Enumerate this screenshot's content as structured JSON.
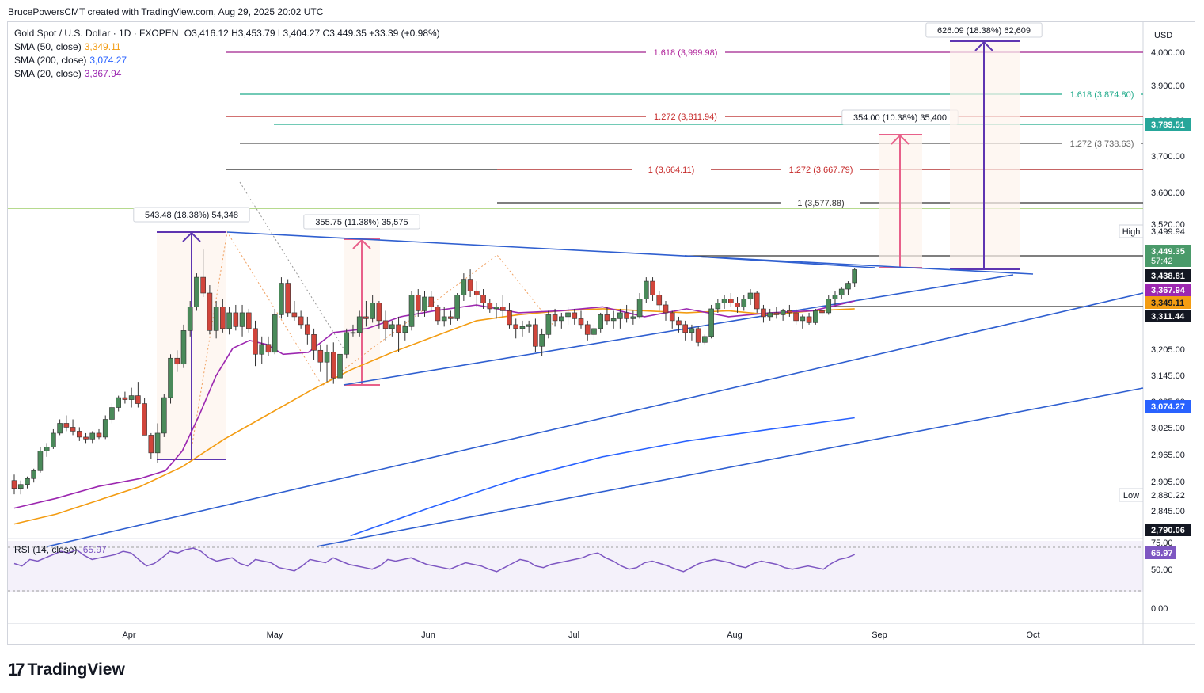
{
  "header": {
    "text": "BrucePowersCMT created with TradingView.com, Aug 29, 2025 20:02 UTC"
  },
  "legend": {
    "title": "Gold Spot / U.S. Dollar · 1D · FXOPEN",
    "ohlc": "O3,416.12  H3,453.79  L3,404.27  C3,449.35  +33.39 (+0.98%)",
    "sma50_label": "SMA (50, close)",
    "sma50_value": "3,349.11",
    "sma200_label": "SMA (200, close)",
    "sma200_value": "3,074.27",
    "sma20_label": "SMA (20, close)",
    "sma20_value": "3,367.94"
  },
  "rsi": {
    "label": "RSI (14, close)",
    "value": "65.97"
  },
  "brand": {
    "name": "TradingView"
  },
  "colors": {
    "up": "#4a8a5a",
    "down": "#d1453b",
    "sma50": "#f39c12",
    "sma200": "#2962ff",
    "sma20": "#9c27b0",
    "trend": "#2f5fd0",
    "rsi": "#7e57c2"
  },
  "chart_data": {
    "type": "candlestick",
    "title": "Gold Spot / U.S. Dollar · 1D · FXOPEN",
    "currency": "USD",
    "x_ticks": [
      "Apr",
      "May",
      "Jun",
      "Jul",
      "Aug",
      "Sep",
      "Oct"
    ],
    "y_ticks": [
      "4,000.00",
      "3,900.00",
      "3,800.00",
      "3,700.00",
      "3,600.00",
      "3,520.00",
      "3,205.00",
      "3,145.00",
      "3,085.00",
      "3,025.00",
      "2,965.00",
      "2,905.00",
      "2,845.00"
    ],
    "rsi_ticks": [
      "75.00",
      "50.00",
      "0.00"
    ],
    "price_labels": [
      {
        "text": "3,789.51",
        "bg": "#26a69a",
        "fg": "#ffffff"
      },
      {
        "text": "High",
        "value": "3,499.94",
        "bg": "#ffffff",
        "fg": "#131722"
      },
      {
        "text": "3,449.35",
        "sub": "57:42",
        "bg": "#4a9a6a",
        "fg": "#ffffff"
      },
      {
        "text": "3,438.81",
        "bg": "#131722",
        "fg": "#ffffff"
      },
      {
        "text": "3,367.94",
        "bg": "#9c27b0",
        "fg": "#ffffff"
      },
      {
        "text": "3,349.11",
        "bg": "#f39c12",
        "fg": "#131722"
      },
      {
        "text": "3,311.44",
        "bg": "#131722",
        "fg": "#ffffff"
      },
      {
        "text": "3,074.27",
        "bg": "#2962ff",
        "fg": "#ffffff"
      },
      {
        "text": "Low",
        "value": "2,880.22",
        "bg": "#ffffff",
        "fg": "#131722"
      },
      {
        "text": "2,790.06",
        "bg": "#131722",
        "fg": "#ffffff"
      }
    ],
    "fib_labels": [
      {
        "text": "1.618 (3,999.98)",
        "color": "#b0249a"
      },
      {
        "text": "1.618 (3,874.80)",
        "color": "#1faa8a"
      },
      {
        "text": "1.272 (3,811.94)",
        "color": "#c62828"
      },
      {
        "text": "1.272 (3,738.63)",
        "color": "#666666"
      },
      {
        "text": "1 (3,664.11)",
        "color": "#c62828"
      },
      {
        "text": "1.272 (3,667.79)",
        "color": "#c62828"
      },
      {
        "text": "1 (3,577.88)",
        "color": "#333333"
      }
    ],
    "measure_labels": [
      "543.48 (18.38%) 54,348",
      "355.75 (11.38%) 35,575",
      "354.00 (10.38%) 35,400",
      "626.09 (18.38%) 62,609"
    ],
    "candles": [
      [
        2915,
        2930,
        2880,
        2895
      ],
      [
        2895,
        2915,
        2880,
        2905
      ],
      [
        2905,
        2925,
        2895,
        2920
      ],
      [
        2920,
        2945,
        2910,
        2940
      ],
      [
        2940,
        3000,
        2935,
        2990
      ],
      [
        2990,
        3010,
        2975,
        3000
      ],
      [
        3000,
        3045,
        2995,
        3035
      ],
      [
        3035,
        3070,
        3030,
        3060
      ],
      [
        3060,
        3080,
        3040,
        3050
      ],
      [
        3050,
        3070,
        3030,
        3040
      ],
      [
        3040,
        3050,
        3015,
        3025
      ],
      [
        3025,
        3035,
        3010,
        3020
      ],
      [
        3020,
        3040,
        3010,
        3035
      ],
      [
        3035,
        3045,
        3020,
        3025
      ],
      [
        3025,
        3080,
        3020,
        3070
      ],
      [
        3070,
        3110,
        3060,
        3100
      ],
      [
        3100,
        3130,
        3090,
        3125
      ],
      [
        3125,
        3140,
        3110,
        3120
      ],
      [
        3120,
        3150,
        3100,
        3130
      ],
      [
        3130,
        3165,
        3100,
        3110
      ],
      [
        3110,
        3125,
        3030,
        3030
      ],
      [
        3030,
        3035,
        2970,
        2985
      ],
      [
        2985,
        3060,
        2960,
        3035
      ],
      [
        3035,
        3135,
        3025,
        3125
      ],
      [
        3125,
        3235,
        3110,
        3225
      ],
      [
        3225,
        3245,
        3190,
        3210
      ],
      [
        3210,
        3310,
        3200,
        3295
      ],
      [
        3295,
        3370,
        3280,
        3355
      ],
      [
        3355,
        3440,
        3345,
        3430
      ],
      [
        3430,
        3500,
        3380,
        3390
      ],
      [
        3390,
        3410,
        3285,
        3295
      ],
      [
        3295,
        3370,
        3275,
        3355
      ],
      [
        3355,
        3375,
        3290,
        3300
      ],
      [
        3300,
        3355,
        3285,
        3340
      ],
      [
        3340,
        3360,
        3295,
        3305
      ],
      [
        3305,
        3360,
        3280,
        3340
      ],
      [
        3340,
        3350,
        3290,
        3300
      ],
      [
        3300,
        3320,
        3205,
        3235
      ],
      [
        3235,
        3280,
        3210,
        3260
      ],
      [
        3260,
        3280,
        3230,
        3240
      ],
      [
        3240,
        3350,
        3235,
        3335
      ],
      [
        3335,
        3430,
        3325,
        3415
      ],
      [
        3415,
        3425,
        3330,
        3340
      ],
      [
        3340,
        3370,
        3320,
        3330
      ],
      [
        3330,
        3345,
        3300,
        3310
      ],
      [
        3310,
        3330,
        3260,
        3285
      ],
      [
        3285,
        3300,
        3220,
        3245
      ],
      [
        3245,
        3260,
        3190,
        3215
      ],
      [
        3215,
        3260,
        3165,
        3240
      ],
      [
        3240,
        3265,
        3160,
        3175
      ],
      [
        3175,
        3255,
        3170,
        3235
      ],
      [
        3235,
        3300,
        3225,
        3290
      ],
      [
        3290,
        3310,
        3280,
        3290
      ],
      [
        3290,
        3345,
        3280,
        3330
      ],
      [
        3330,
        3370,
        3305,
        3325
      ],
      [
        3325,
        3385,
        3315,
        3365
      ],
      [
        3365,
        3370,
        3300,
        3320
      ],
      [
        3320,
        3345,
        3270,
        3300
      ],
      [
        3300,
        3320,
        3280,
        3310
      ],
      [
        3310,
        3330,
        3240,
        3290
      ],
      [
        3290,
        3320,
        3270,
        3305
      ],
      [
        3305,
        3395,
        3295,
        3385
      ],
      [
        3385,
        3400,
        3330,
        3345
      ],
      [
        3345,
        3395,
        3330,
        3380
      ],
      [
        3380,
        3395,
        3345,
        3355
      ],
      [
        3355,
        3360,
        3310,
        3320
      ],
      [
        3320,
        3355,
        3305,
        3330
      ],
      [
        3330,
        3345,
        3310,
        3325
      ],
      [
        3325,
        3390,
        3320,
        3385
      ],
      [
        3385,
        3440,
        3370,
        3425
      ],
      [
        3425,
        3450,
        3380,
        3395
      ],
      [
        3395,
        3420,
        3355,
        3385
      ],
      [
        3385,
        3400,
        3350,
        3365
      ],
      [
        3365,
        3375,
        3340,
        3350
      ],
      [
        3350,
        3365,
        3325,
        3355
      ],
      [
        3355,
        3385,
        3330,
        3345
      ],
      [
        3345,
        3365,
        3300,
        3310
      ],
      [
        3310,
        3325,
        3275,
        3300
      ],
      [
        3300,
        3320,
        3280,
        3305
      ],
      [
        3305,
        3320,
        3290,
        3310
      ],
      [
        3310,
        3325,
        3240,
        3255
      ],
      [
        3255,
        3300,
        3230,
        3285
      ],
      [
        3285,
        3345,
        3275,
        3335
      ],
      [
        3335,
        3350,
        3305,
        3320
      ],
      [
        3320,
        3340,
        3300,
        3330
      ],
      [
        3330,
        3355,
        3310,
        3340
      ],
      [
        3340,
        3350,
        3310,
        3325
      ],
      [
        3325,
        3345,
        3300,
        3310
      ],
      [
        3310,
        3320,
        3270,
        3285
      ],
      [
        3285,
        3310,
        3270,
        3300
      ],
      [
        3300,
        3340,
        3290,
        3335
      ],
      [
        3335,
        3355,
        3310,
        3320
      ],
      [
        3320,
        3345,
        3300,
        3325
      ],
      [
        3325,
        3350,
        3300,
        3340
      ],
      [
        3340,
        3360,
        3315,
        3325
      ],
      [
        3325,
        3345,
        3310,
        3330
      ],
      [
        3330,
        3390,
        3325,
        3375
      ],
      [
        3375,
        3430,
        3365,
        3420
      ],
      [
        3420,
        3430,
        3370,
        3385
      ],
      [
        3385,
        3395,
        3345,
        3360
      ],
      [
        3360,
        3370,
        3320,
        3340
      ],
      [
        3340,
        3345,
        3300,
        3320
      ],
      [
        3320,
        3330,
        3290,
        3310
      ],
      [
        3310,
        3320,
        3270,
        3290
      ],
      [
        3290,
        3310,
        3270,
        3300
      ],
      [
        3300,
        3305,
        3255,
        3265
      ],
      [
        3265,
        3285,
        3260,
        3280
      ],
      [
        3280,
        3360,
        3275,
        3350
      ],
      [
        3350,
        3375,
        3340,
        3365
      ],
      [
        3365,
        3385,
        3350,
        3375
      ],
      [
        3375,
        3390,
        3355,
        3365
      ],
      [
        3365,
        3380,
        3340,
        3355
      ],
      [
        3355,
        3385,
        3345,
        3375
      ],
      [
        3375,
        3400,
        3360,
        3390
      ],
      [
        3390,
        3395,
        3340,
        3350
      ],
      [
        3350,
        3360,
        3315,
        3330
      ],
      [
        3330,
        3350,
        3320,
        3340
      ],
      [
        3340,
        3355,
        3325,
        3335
      ],
      [
        3335,
        3350,
        3320,
        3345
      ],
      [
        3345,
        3360,
        3330,
        3340
      ],
      [
        3340,
        3350,
        3310,
        3320
      ],
      [
        3320,
        3335,
        3300,
        3330
      ],
      [
        3330,
        3340,
        3310,
        3315
      ],
      [
        3315,
        3350,
        3310,
        3345
      ],
      [
        3345,
        3355,
        3330,
        3340
      ],
      [
        3340,
        3385,
        3335,
        3375
      ],
      [
        3375,
        3395,
        3360,
        3385
      ],
      [
        3385,
        3405,
        3375,
        3400
      ],
      [
        3400,
        3420,
        3385,
        3415
      ],
      [
        3416.12,
        3453.79,
        3404.27,
        3449.35
      ]
    ],
    "sma20": [
      [
        0,
        2845
      ],
      [
        0.05,
        2870
      ],
      [
        0.1,
        2900
      ],
      [
        0.15,
        2920
      ],
      [
        0.18,
        2940
      ],
      [
        0.2,
        2990
      ],
      [
        0.22,
        3080
      ],
      [
        0.24,
        3180
      ],
      [
        0.26,
        3250
      ],
      [
        0.28,
        3270
      ],
      [
        0.3,
        3260
      ],
      [
        0.32,
        3235
      ],
      [
        0.35,
        3240
      ],
      [
        0.38,
        3290
      ],
      [
        0.42,
        3300
      ],
      [
        0.46,
        3330
      ],
      [
        0.5,
        3345
      ],
      [
        0.55,
        3360
      ],
      [
        0.6,
        3340
      ],
      [
        0.65,
        3345
      ],
      [
        0.7,
        3355
      ],
      [
        0.75,
        3330
      ],
      [
        0.8,
        3350
      ],
      [
        0.85,
        3330
      ],
      [
        0.9,
        3340
      ],
      [
        0.95,
        3345
      ],
      [
        1,
        3370
      ]
    ],
    "sma50": [
      [
        0,
        2805
      ],
      [
        0.05,
        2830
      ],
      [
        0.1,
        2865
      ],
      [
        0.15,
        2900
      ],
      [
        0.2,
        2950
      ],
      [
        0.25,
        3020
      ],
      [
        0.3,
        3080
      ],
      [
        0.35,
        3140
      ],
      [
        0.4,
        3195
      ],
      [
        0.45,
        3240
      ],
      [
        0.5,
        3280
      ],
      [
        0.55,
        3320
      ],
      [
        0.6,
        3335
      ],
      [
        0.65,
        3345
      ],
      [
        0.7,
        3350
      ],
      [
        0.75,
        3345
      ],
      [
        0.8,
        3340
      ],
      [
        0.85,
        3345
      ],
      [
        0.9,
        3335
      ],
      [
        0.95,
        3345
      ],
      [
        1,
        3350
      ]
    ],
    "sma200": [
      [
        0.4,
        2775
      ],
      [
        0.5,
        2850
      ],
      [
        0.6,
        2920
      ],
      [
        0.7,
        2975
      ],
      [
        0.8,
        3015
      ],
      [
        0.9,
        3045
      ],
      [
        1,
        3074
      ]
    ],
    "rsi_values": [
      55,
      52,
      60,
      58,
      62,
      66,
      70,
      68,
      72,
      65,
      60,
      62,
      64,
      66,
      70,
      68,
      60,
      52,
      55,
      62,
      70,
      68,
      72,
      74,
      70,
      62,
      58,
      60,
      62,
      55,
      52,
      60,
      58,
      56,
      50,
      48,
      46,
      52,
      60,
      58,
      56,
      62,
      58,
      54,
      52,
      50,
      48,
      52,
      60,
      58,
      60,
      62,
      58,
      54,
      52,
      50,
      48,
      52,
      56,
      54,
      52,
      48,
      45,
      50,
      55,
      60,
      58,
      52,
      50,
      54,
      56,
      58,
      60,
      62,
      66,
      68,
      62,
      58,
      52,
      48,
      50,
      56,
      58,
      55,
      52,
      48,
      45,
      50,
      55,
      58,
      60,
      58,
      56,
      52,
      50,
      55,
      58,
      56,
      54,
      50,
      48,
      50,
      52,
      50,
      48,
      55,
      60,
      62,
      66
    ]
  }
}
